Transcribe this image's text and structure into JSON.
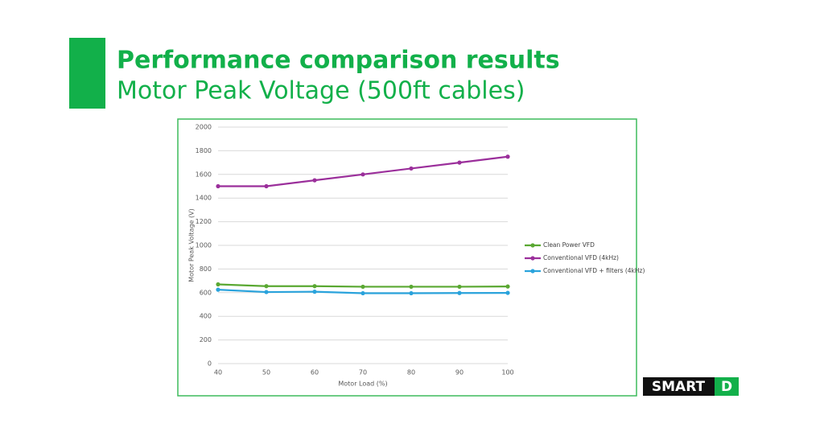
{
  "header": {
    "title": "Performance comparison results",
    "subtitle": "Motor Peak Voltage (500ft cables)"
  },
  "chart_data": {
    "type": "line",
    "x": [
      40,
      50,
      60,
      70,
      80,
      90,
      100
    ],
    "xlim": [
      40,
      100
    ],
    "xticks": [
      40,
      50,
      60,
      70,
      80,
      90,
      100
    ],
    "ylim": [
      0,
      2000
    ],
    "yticks": [
      0,
      200,
      400,
      600,
      800,
      1000,
      1200,
      1400,
      1600,
      1800,
      2000
    ],
    "x_label": "Motor Load (%)",
    "y_label": "Motor Peak Voltage (V)",
    "grid": true,
    "legend": "right",
    "series": [
      {
        "name": "Clean Power VFD",
        "color": "#5aa832",
        "values": [
          670,
          655,
          655,
          650,
          650,
          650,
          652
        ]
      },
      {
        "name": "Conventional VFD (4kHz)",
        "color": "#9b2f9b",
        "values": [
          1500,
          1500,
          1550,
          1600,
          1650,
          1700,
          1750
        ]
      },
      {
        "name": "Conventional VFD + filters (4kHz)",
        "color": "#2aa3dc",
        "values": [
          625,
          605,
          608,
          595,
          595,
          597,
          598
        ]
      }
    ]
  },
  "logo": {
    "left": "SMART",
    "right": "D"
  }
}
